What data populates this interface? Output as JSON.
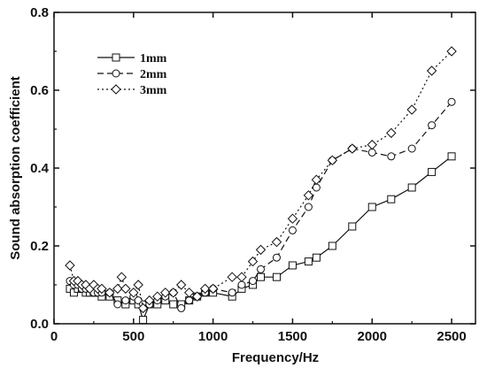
{
  "chart_data": {
    "type": "line",
    "xlabel": "Frequency/Hz",
    "ylabel": "Sound absorption coefficient",
    "xlim": [
      0,
      2650
    ],
    "ylim": [
      0,
      0.8
    ],
    "xticks": [
      0,
      500,
      1000,
      1500,
      2000,
      2500
    ],
    "yticks": [
      0.0,
      0.2,
      0.4,
      0.6,
      0.8
    ],
    "xtick_labels": [
      "0",
      "500",
      "1000",
      "1500",
      "2000",
      "2500"
    ],
    "ytick_labels": [
      "0.0",
      "0.2",
      "0.4",
      "0.6",
      "0.8"
    ],
    "grid": false,
    "legend_position": "top-left",
    "series": [
      {
        "name": "1mm",
        "marker": "square",
        "line_style": "solid",
        "x": [
          100,
          125,
          150,
          175,
          200,
          225,
          250,
          275,
          300,
          350,
          400,
          450,
          500,
          530,
          560,
          600,
          650,
          700,
          750,
          800,
          850,
          900,
          950,
          1000,
          1120,
          1180,
          1250,
          1300,
          1400,
          1500,
          1600,
          1650,
          1750,
          1875,
          2000,
          2120,
          2250,
          2375,
          2500
        ],
        "y": [
          0.09,
          0.08,
          0.09,
          0.09,
          0.08,
          0.08,
          0.08,
          0.08,
          0.07,
          0.07,
          0.06,
          0.05,
          0.06,
          0.05,
          0.01,
          0.05,
          0.05,
          0.06,
          0.05,
          0.05,
          0.06,
          0.07,
          0.08,
          0.08,
          0.07,
          0.09,
          0.1,
          0.12,
          0.12,
          0.15,
          0.16,
          0.17,
          0.2,
          0.25,
          0.3,
          0.32,
          0.35,
          0.39,
          0.43
        ]
      },
      {
        "name": "2mm",
        "marker": "circle",
        "line_style": "dashed",
        "x": [
          100,
          125,
          150,
          175,
          200,
          225,
          250,
          275,
          300,
          350,
          400,
          450,
          500,
          530,
          560,
          600,
          650,
          700,
          750,
          800,
          850,
          900,
          950,
          1000,
          1120,
          1180,
          1250,
          1300,
          1400,
          1500,
          1600,
          1650,
          1750,
          1875,
          2000,
          2120,
          2250,
          2375,
          2500
        ],
        "y": [
          0.11,
          0.1,
          0.1,
          0.09,
          0.09,
          0.09,
          0.08,
          0.08,
          0.08,
          0.08,
          0.05,
          0.06,
          0.07,
          0.06,
          0.05,
          0.05,
          0.06,
          0.07,
          0.08,
          0.04,
          0.06,
          0.07,
          0.08,
          0.09,
          0.08,
          0.1,
          0.11,
          0.14,
          0.17,
          0.24,
          0.3,
          0.35,
          0.42,
          0.45,
          0.44,
          0.43,
          0.45,
          0.51,
          0.57
        ]
      },
      {
        "name": "3mm",
        "marker": "diamond",
        "line_style": "dotted",
        "x": [
          100,
          125,
          150,
          175,
          200,
          225,
          250,
          275,
          300,
          350,
          400,
          425,
          450,
          500,
          530,
          560,
          600,
          650,
          700,
          750,
          800,
          850,
          900,
          950,
          1000,
          1120,
          1180,
          1250,
          1300,
          1400,
          1500,
          1600,
          1650,
          1750,
          1875,
          2000,
          2120,
          2250,
          2375,
          2500
        ],
        "y": [
          0.15,
          0.11,
          0.11,
          0.1,
          0.1,
          0.09,
          0.1,
          0.09,
          0.09,
          0.08,
          0.09,
          0.12,
          0.09,
          0.08,
          0.1,
          0.04,
          0.06,
          0.07,
          0.08,
          0.08,
          0.1,
          0.08,
          0.07,
          0.09,
          0.09,
          0.12,
          0.12,
          0.16,
          0.19,
          0.21,
          0.27,
          0.33,
          0.37,
          0.42,
          0.45,
          0.46,
          0.49,
          0.55,
          0.65,
          0.7
        ]
      }
    ]
  }
}
